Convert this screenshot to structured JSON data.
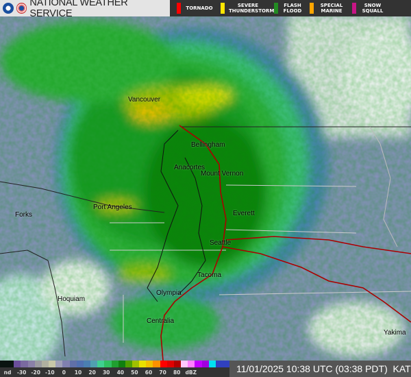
{
  "header": {
    "title": "NATIONAL WEATHER SERVICE",
    "warnings": [
      {
        "label": "TORNADO",
        "color": "#ff0000"
      },
      {
        "label": "SEVERE THUNDERSTORM",
        "color": "#ffe600"
      },
      {
        "label": "FLASH FLOOD",
        "color": "#228b22"
      },
      {
        "label": "SPECIAL MARINE",
        "color": "#ffa500"
      },
      {
        "label": "SNOW SQUALL",
        "color": "#c71585"
      }
    ]
  },
  "map": {
    "cities": [
      "Vancouver",
      "Bellingham",
      "Anacortes",
      "Mount Vernon",
      "Port Angeles",
      "Forks",
      "Everett",
      "Seattle",
      "Tacoma",
      "Olympia",
      "Hoquiam",
      "Centralia",
      "Yakima"
    ]
  },
  "legend": {
    "ticks": [
      "nd",
      "-30",
      "-20",
      "-10",
      "0",
      "10",
      "20",
      "30",
      "40",
      "50",
      "60",
      "70",
      "80",
      "dBZ"
    ],
    "colors": [
      "#0a1410",
      "#0a1410",
      "#6b4f9b",
      "#7a6aa0",
      "#8a80a8",
      "#9a9aa0",
      "#b0b0a0",
      "#c8c8a8",
      "#a0a0b8",
      "#8080b0",
      "#6070a8",
      "#5070b0",
      "#4a7fb0",
      "#50a0b0",
      "#40d090",
      "#30c060",
      "#20a030",
      "#108010",
      "#50a000",
      "#a0c000",
      "#e8e000",
      "#f0c000",
      "#ff9000",
      "#ff0000",
      "#e00000",
      "#b00000",
      "#ffc8ff",
      "#ff80ff",
      "#c000ff",
      "#a000e0",
      "#00e0f0",
      "#3040c0",
      "#3040c0"
    ]
  },
  "status": {
    "timestamp": "11/01/2025 10:38 UTC (03:38 PDT)",
    "station": "KATX"
  }
}
